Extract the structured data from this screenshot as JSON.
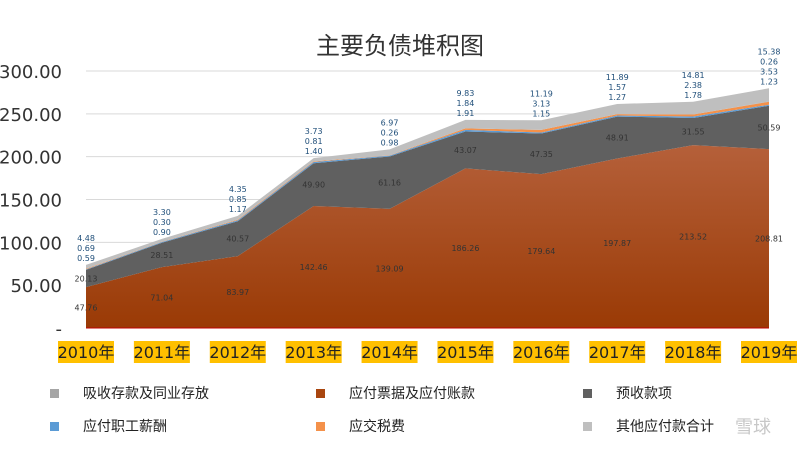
{
  "chart_data": {
    "type": "area",
    "stacked": true,
    "title": "主要负债堆积图",
    "categories": [
      "2010年",
      "2011年",
      "2012年",
      "2013年",
      "2014年",
      "2015年",
      "2016年",
      "2017年",
      "2018年",
      "2019年"
    ],
    "ylim": [
      0,
      300
    ],
    "yticks": [
      "-",
      "50.00",
      "100.00",
      "150.00",
      "200.00",
      "250.00",
      "300.00"
    ],
    "grid": true,
    "legend_position": "bottom",
    "series": [
      {
        "name": "应付票据及应付账款",
        "color": "#a9460f",
        "values": [
          47.76,
          71.04,
          83.97,
          142.46,
          139.09,
          186.26,
          179.64,
          197.87,
          213.52,
          208.81
        ]
      },
      {
        "name": "预收款项",
        "color": "#606060",
        "values": [
          20.13,
          28.51,
          40.57,
          49.9,
          61.16,
          43.07,
          47.35,
          48.91,
          31.55,
          50.59
        ]
      },
      {
        "name": "应付职工薪酬",
        "color": "#5b9bd5",
        "values": [
          0.59,
          0.9,
          1.17,
          1.4,
          0.98,
          1.91,
          1.15,
          1.27,
          1.78,
          1.23
        ]
      },
      {
        "name": "应交税费",
        "color": "#f4914a",
        "values": [
          0.69,
          0.3,
          0.85,
          0.81,
          0.26,
          1.84,
          3.13,
          1.57,
          2.38,
          3.53
        ]
      },
      {
        "name": "吸收存款及同业存放",
        "color": "#a5a5a5",
        "values": [
          0,
          0,
          0,
          0,
          0,
          0,
          0,
          0,
          0,
          0.26
        ]
      },
      {
        "name": "其他应付款合计",
        "color": "#bfbfbf",
        "values": [
          4.48,
          3.3,
          4.35,
          3.73,
          6.97,
          9.83,
          11.19,
          11.89,
          14.81,
          15.38
        ]
      }
    ]
  },
  "legend": [
    {
      "label": "吸收存款及同业存放",
      "color": "#a5a5a5"
    },
    {
      "label": "应付票据及应付账款",
      "color": "#a9460f"
    },
    {
      "label": "预收款项",
      "color": "#606060"
    },
    {
      "label": "应付职工薪酬",
      "color": "#5b9bd5"
    },
    {
      "label": "应交税费",
      "color": "#f4914a"
    },
    {
      "label": "其他应付款合计",
      "color": "#bfbfbf"
    }
  ],
  "watermark": "雪球"
}
